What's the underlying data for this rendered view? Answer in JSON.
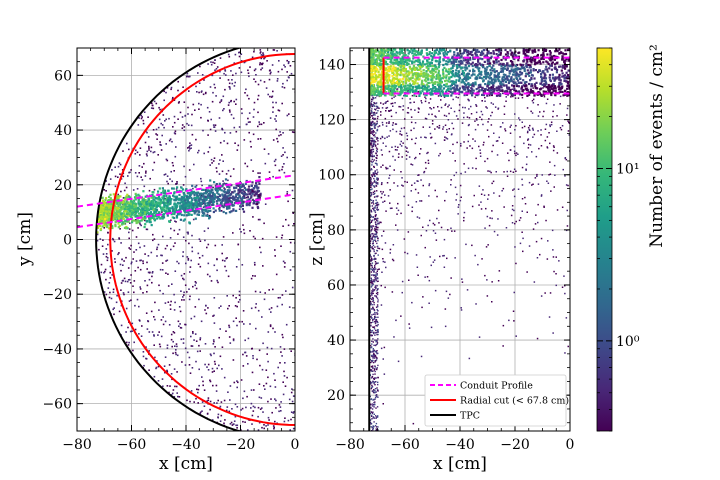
{
  "chart_data": [
    {
      "panel": "left",
      "type": "heatmap",
      "xlabel": "x [cm]",
      "ylabel": "y [cm]",
      "xlim": [
        -80,
        0
      ],
      "ylim": [
        -70,
        70
      ],
      "xticks": [
        -80,
        -60,
        -40,
        -20,
        0
      ],
      "xtick_labels": [
        "−80",
        "−60",
        "−40",
        "−20",
        "0"
      ],
      "yticks": [
        -60,
        -40,
        -20,
        0,
        20,
        40,
        60
      ],
      "ytick_labels": [
        "−60",
        "−40",
        "−20",
        "0",
        "20",
        "40",
        "60"
      ],
      "grid": true,
      "tpc_radius": 73,
      "radial_cut_radius": 67.8,
      "conduit_upper": {
        "x": [
          -80,
          0
        ],
        "y": [
          12,
          23.5
        ]
      },
      "conduit_lower": {
        "x": [
          -80,
          0
        ],
        "y": [
          4.5,
          16.5
        ]
      }
    },
    {
      "panel": "right",
      "type": "heatmap",
      "xlabel": "x [cm]",
      "ylabel": "z [cm]",
      "xlim": [
        -80,
        0
      ],
      "ylim": [
        7,
        146
      ],
      "xticks": [
        -80,
        -60,
        -40,
        -20,
        0
      ],
      "xtick_labels": [
        "−80",
        "−60",
        "−40",
        "−20",
        "0"
      ],
      "yticks": [
        20,
        40,
        60,
        80,
        100,
        120,
        140
      ],
      "ytick_labels": [
        "20",
        "40",
        "60",
        "80",
        "100",
        "120",
        "140"
      ],
      "grid": true,
      "tpc_x": -73,
      "radial_cut_x": -67.8,
      "radial_cut_z": [
        129.5,
        142.5
      ],
      "conduit_z": [
        129.5,
        142.5
      ],
      "legend_position": "lower-right",
      "legend": [
        {
          "label": "Conduit Profile",
          "color": "#ff00ff",
          "style": "dashed"
        },
        {
          "label": "Radial cut (< 67.8 cm)",
          "color": "#ff0000",
          "style": "solid"
        },
        {
          "label": "TPC",
          "color": "#000000",
          "style": "solid"
        }
      ]
    },
    {
      "panel": "colorbar",
      "type": "colorbar",
      "scale": "log",
      "label": "Number of events / cm²",
      "range": [
        0.3,
        50
      ],
      "major_ticks": [
        1,
        10
      ],
      "major_tick_labels": [
        "10⁰",
        "10¹"
      ],
      "colormap": [
        "#440154",
        "#482878",
        "#3e4989",
        "#31688e",
        "#26828e",
        "#1f9e89",
        "#35b779",
        "#6ece58",
        "#b5de2b",
        "#fde725"
      ]
    }
  ]
}
